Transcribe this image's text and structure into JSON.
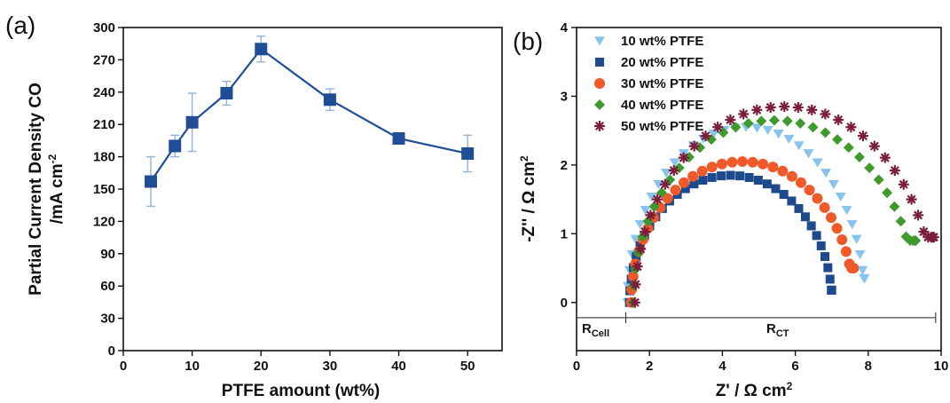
{
  "chart_data": [
    {
      "panel": "(a)",
      "type": "line",
      "xlabel": "PTFE amount (wt%)",
      "ylabel_line1": "Partial Current Density CO",
      "ylabel_line2_main": "/mA cm",
      "ylabel_line2_sup": "-2",
      "xlim": [
        0,
        55
      ],
      "ylim": [
        0,
        300
      ],
      "xticks": [
        0,
        10,
        20,
        30,
        40,
        50
      ],
      "yticks": [
        0,
        30,
        60,
        90,
        120,
        150,
        180,
        210,
        240,
        270,
        300
      ],
      "color": "#1f4e96",
      "errorbar_color": "#8fb3d9",
      "series": [
        {
          "x": [
            4,
            7.5,
            10,
            15,
            20,
            30,
            40,
            50
          ],
          "y": [
            157,
            190,
            212,
            239,
            280,
            233,
            197,
            183
          ],
          "err": [
            23,
            10,
            27,
            11,
            12,
            10,
            3,
            17
          ]
        }
      ],
      "grid": false
    },
    {
      "panel": "(b)",
      "type": "scatter",
      "xlabel_main": "Z' / Ω cm",
      "xlabel_sup": "2",
      "ylabel_main": "-Z'' / Ω cm",
      "ylabel_sup": "2",
      "xlim": [
        0,
        10
      ],
      "ylim": [
        -0.7,
        4
      ],
      "xticks": [
        0,
        2,
        4,
        6,
        8,
        10
      ],
      "yticks": [
        0,
        1,
        2,
        3,
        4
      ],
      "legend_position": "top-left",
      "annotations": {
        "rcell_main": "R",
        "rcell_sub": "Cell",
        "rct_main": "R",
        "rct_sub": "CT",
        "rcell_range": [
          0,
          1.35
        ],
        "rct_range": [
          1.35,
          9.85
        ],
        "bracket_y": -0.22
      },
      "series": [
        {
          "name": "10 wt% PTFE",
          "marker": "triangle-down",
          "color": "#87c4ef",
          "x0": 1.4,
          "x1": 7.9,
          "peak": 2.55,
          "tail": 0.35
        },
        {
          "name": "20 wt% PTFE",
          "marker": "square",
          "color": "#1c4a8c",
          "x0": 1.45,
          "x1": 7.0,
          "peak": 1.85,
          "tail": 0.18
        },
        {
          "name": "30 wt% PTFE",
          "marker": "circle",
          "color": "#f05a2a",
          "x0": 1.5,
          "x1": 7.6,
          "peak": 2.05,
          "tail": 0.5
        },
        {
          "name": "40 wt% PTFE",
          "marker": "diamond",
          "color": "#3f9a2e",
          "x0": 1.55,
          "x1": 9.3,
          "peak": 2.65,
          "tail": 0.9
        },
        {
          "name": "50 wt% PTFE",
          "marker": "asterisk",
          "color": "#7a1e3c",
          "x0": 1.6,
          "x1": 9.8,
          "peak": 2.85,
          "tail": 0.95
        }
      ],
      "grid": false
    }
  ]
}
